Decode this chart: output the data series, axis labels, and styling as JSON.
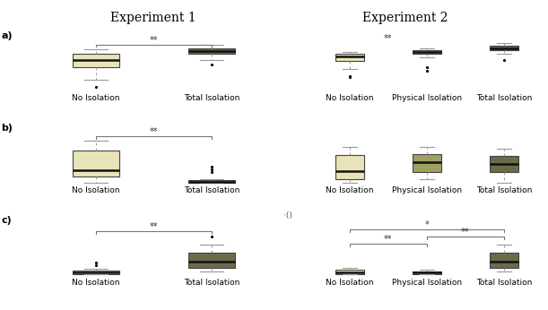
{
  "title_exp1": "Experiment 1",
  "title_exp2": "Experiment 2",
  "row_labels": [
    "a)",
    "b)",
    "c)"
  ],
  "exp1_xlabels": [
    "No Isolation",
    "Total Isolation"
  ],
  "exp2_xlabels": [
    "No Isolation",
    "Physical Isolation",
    "Total Isolation"
  ],
  "color_light": "#e8e4b8",
  "color_dark": "#6b6b4a",
  "color_medium": "#a0a060",
  "whisker_color": "#999999",
  "median_color": "#111111",
  "box_edge_color": "#444444",
  "exp1_a": {
    "no_isolation": {
      "q1": 0.38,
      "median": 0.5,
      "q3": 0.6,
      "whislo": 0.18,
      "whishi": 0.68,
      "fliers": [
        0.06
      ]
    },
    "total_isolation": {
      "q1": 0.6,
      "median": 0.65,
      "q3": 0.7,
      "whislo": 0.5,
      "whishi": 0.76,
      "fliers": [
        0.42
      ]
    }
  },
  "exp1_b": {
    "no_isolation": {
      "q1": 0.1,
      "median": 0.22,
      "q3": 0.55,
      "whislo": 0.0,
      "whishi": 0.72,
      "fliers": []
    },
    "total_isolation": {
      "q1": 0.0,
      "median": 0.01,
      "q3": 0.04,
      "whislo": 0.0,
      "whishi": 0.06,
      "fliers": [
        0.18,
        0.23,
        0.27
      ]
    }
  },
  "exp1_c": {
    "no_isolation": {
      "q1": 0.0,
      "median": 0.01,
      "q3": 0.03,
      "whislo": 0.0,
      "whishi": 0.05,
      "fliers": [
        0.08,
        0.11
      ]
    },
    "total_isolation": {
      "q1": 0.06,
      "median": 0.12,
      "q3": 0.2,
      "whislo": 0.02,
      "whishi": 0.28,
      "fliers": [
        0.36
      ]
    }
  },
  "exp2_a": {
    "no_isolation": {
      "q1": 0.48,
      "median": 0.56,
      "q3": 0.6,
      "whislo": 0.36,
      "whishi": 0.64,
      "fliers": [
        0.24,
        0.22
      ]
    },
    "physical_isolation": {
      "q1": 0.6,
      "median": 0.64,
      "q3": 0.67,
      "whislo": 0.55,
      "whishi": 0.7,
      "fliers": [
        0.38,
        0.32
      ]
    },
    "total_isolation": {
      "q1": 0.66,
      "median": 0.7,
      "q3": 0.74,
      "whislo": 0.6,
      "whishi": 0.78,
      "fliers": [
        0.5
      ]
    }
  },
  "exp2_b": {
    "no_isolation": {
      "q1": 0.06,
      "median": 0.2,
      "q3": 0.48,
      "whislo": 0.0,
      "whishi": 0.62,
      "fliers": []
    },
    "physical_isolation": {
      "q1": 0.18,
      "median": 0.36,
      "q3": 0.5,
      "whislo": 0.06,
      "whishi": 0.62,
      "fliers": []
    },
    "total_isolation": {
      "q1": 0.18,
      "median": 0.32,
      "q3": 0.46,
      "whislo": 0.0,
      "whishi": 0.58,
      "fliers": []
    }
  },
  "exp2_c": {
    "no_isolation": {
      "q1": 0.0,
      "median": 0.01,
      "q3": 0.04,
      "whislo": 0.0,
      "whishi": 0.06,
      "fliers": []
    },
    "physical_isolation": {
      "q1": 0.0,
      "median": 0.01,
      "q3": 0.02,
      "whislo": 0.0,
      "whishi": 0.04,
      "fliers": []
    },
    "total_isolation": {
      "q1": 0.06,
      "median": 0.12,
      "q3": 0.2,
      "whislo": 0.02,
      "whishi": 0.28,
      "fliers": []
    }
  },
  "sig_fontsize": 7,
  "label_fontsize": 6.5,
  "title_fontsize": 10,
  "row_label_fontsize": 8
}
